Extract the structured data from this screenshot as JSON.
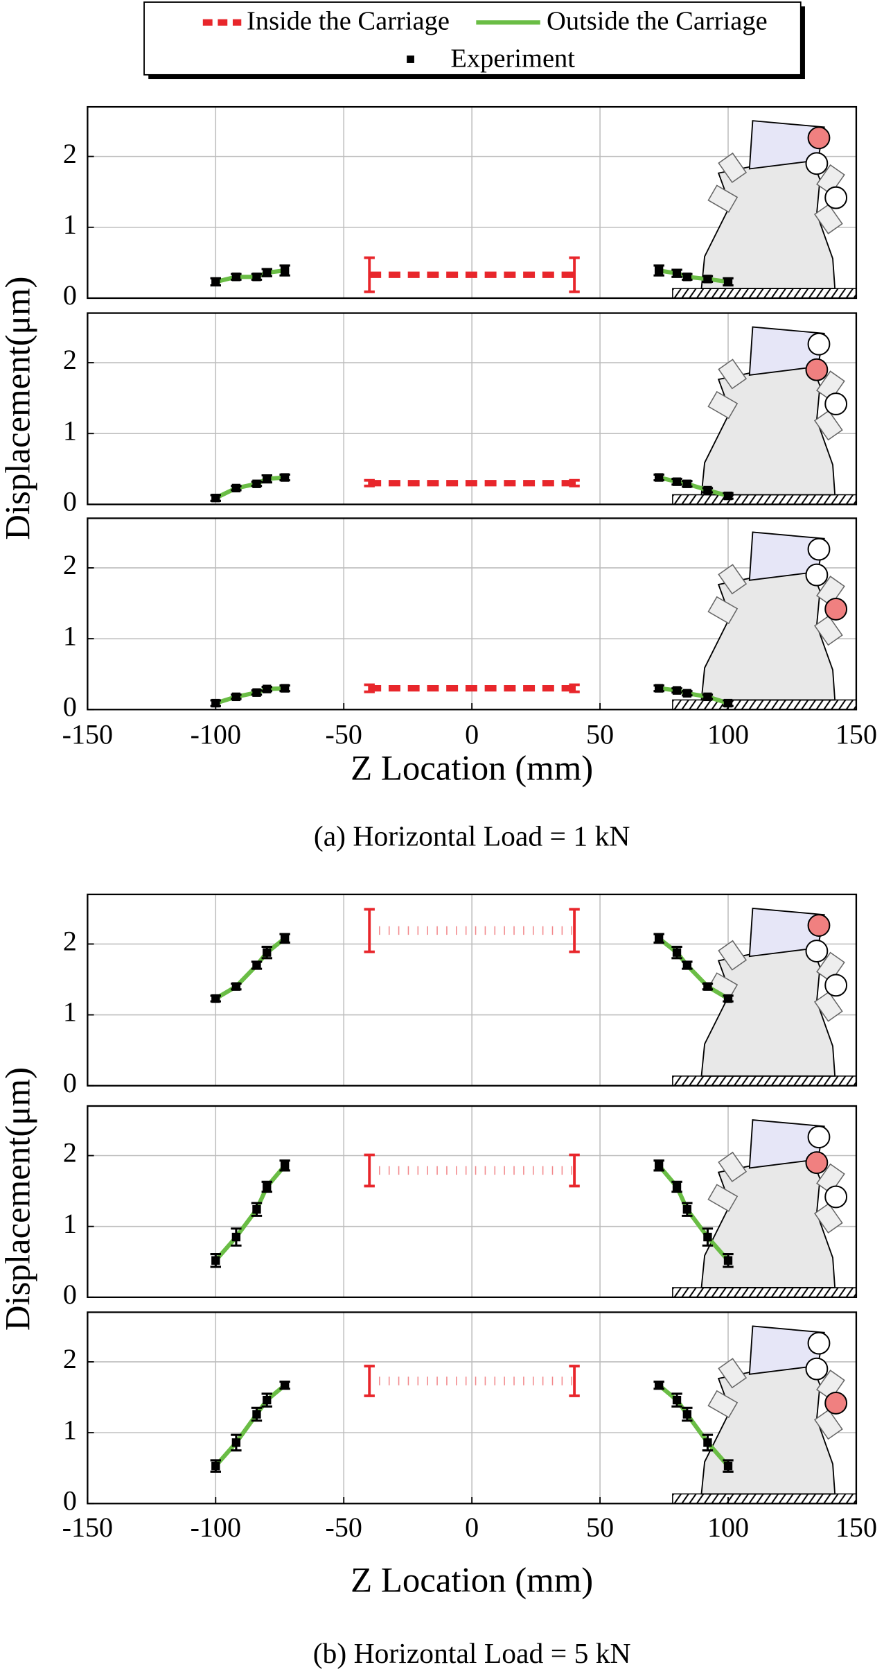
{
  "chart_data": [
    {
      "type": "line",
      "caption": "(a) Horizontal Load = 1 kN",
      "x_label": "Z Location (mm)",
      "y_label": "Displacement(μm)",
      "xlim": [
        -150,
        150
      ],
      "xticks": [
        -150,
        -100,
        -50,
        0,
        50,
        100,
        150
      ],
      "ylim": [
        0,
        2.7
      ],
      "yticks": [
        0,
        1,
        2
      ],
      "grid": true,
      "series": [
        {
          "name": "Inside the Carriage",
          "color": "#e8262b",
          "style": "dashed"
        },
        {
          "name": "Outside the Carriage",
          "color": "#6abd45",
          "style": "solid"
        },
        {
          "name": "Experiment",
          "color": "#000000",
          "style": "marker"
        }
      ],
      "panels": [
        {
          "series": [
            {
              "x": [
                -40,
                40
              ],
              "values": [
                0.33,
                0.33
              ],
              "errors": [
                0.24,
                0.24
              ]
            },
            {
              "x": [
                -100,
                -92,
                -84,
                -80,
                -73,
                null,
                73,
                80,
                84,
                92,
                100
              ],
              "values": [
                0.23,
                0.3,
                0.3,
                0.36,
                0.39,
                null,
                0.39,
                0.35,
                0.3,
                0.27,
                0.23
              ]
            },
            {
              "x": [
                -100,
                -92,
                -84,
                -80,
                -73,
                73,
                80,
                84,
                92,
                100
              ],
              "values": [
                0.23,
                0.3,
                0.3,
                0.36,
                0.39,
                0.39,
                0.35,
                0.3,
                0.27,
                0.23
              ],
              "errors": [
                0.05,
                0.04,
                0.04,
                0.05,
                0.07,
                0.07,
                0.05,
                0.04,
                0.04,
                0.05
              ]
            }
          ]
        },
        {
          "series": [
            {
              "x": [
                -40,
                40
              ],
              "values": [
                0.3,
                0.3
              ],
              "errors": [
                0.04,
                0.04
              ]
            },
            {
              "x": [
                -100,
                -92,
                -84,
                -80,
                -73,
                null,
                73,
                80,
                84,
                92,
                100
              ],
              "values": [
                0.09,
                0.23,
                0.29,
                0.36,
                0.38,
                null,
                0.38,
                0.32,
                0.29,
                0.2,
                0.12
              ]
            },
            {
              "x": [
                -100,
                -92,
                -84,
                -80,
                -73,
                73,
                80,
                84,
                92,
                100
              ],
              "values": [
                0.09,
                0.23,
                0.29,
                0.36,
                0.38,
                0.38,
                0.32,
                0.29,
                0.2,
                0.12
              ],
              "errors": [
                0.04,
                0.03,
                0.03,
                0.05,
                0.04,
                0.04,
                0.04,
                0.04,
                0.03,
                0.04
              ]
            }
          ]
        },
        {
          "series": [
            {
              "x": [
                -40,
                40
              ],
              "values": [
                0.3,
                0.3
              ],
              "errors": [
                0.05,
                0.05
              ]
            },
            {
              "x": [
                -100,
                -92,
                -84,
                -80,
                -73,
                null,
                73,
                80,
                84,
                92,
                100
              ],
              "values": [
                0.09,
                0.18,
                0.24,
                0.29,
                0.3,
                null,
                0.3,
                0.27,
                0.23,
                0.18,
                0.09
              ]
            },
            {
              "x": [
                -100,
                -92,
                -84,
                -80,
                -73,
                73,
                80,
                84,
                92,
                100
              ],
              "values": [
                0.09,
                0.18,
                0.24,
                0.29,
                0.3,
                0.3,
                0.27,
                0.23,
                0.18,
                0.09
              ],
              "errors": [
                0.04,
                0.03,
                0.03,
                0.03,
                0.04,
                0.04,
                0.03,
                0.03,
                0.03,
                0.04
              ]
            }
          ]
        }
      ]
    },
    {
      "type": "line",
      "caption": "(b) Horizontal Load = 5 kN",
      "x_label": "Z Location (mm)",
      "y_label": "Displacement(μm)",
      "xlim": [
        -150,
        150
      ],
      "xticks": [
        -150,
        -100,
        -50,
        0,
        50,
        100,
        150
      ],
      "ylim": [
        0,
        2.7
      ],
      "yticks": [
        0,
        1,
        2
      ],
      "grid": true,
      "series": [
        {
          "color": "#e8262b",
          "style": "dotted"
        },
        {
          "color": "#6abd45",
          "style": "solid"
        },
        {
          "color": "#000000",
          "style": "marker"
        }
      ],
      "panels": [
        {
          "series": [
            {
              "x": [
                -40,
                40
              ],
              "values": [
                2.19,
                2.19
              ],
              "errors": [
                0.3,
                0.3
              ]
            },
            {
              "x": [
                -100,
                -92,
                -84,
                -80,
                -73,
                null,
                73,
                80,
                84,
                92,
                100
              ],
              "values": [
                1.23,
                1.4,
                1.7,
                1.88,
                2.08,
                null,
                2.08,
                1.88,
                1.7,
                1.4,
                1.23
              ]
            },
            {
              "x": [
                -100,
                -92,
                -84,
                -80,
                -73,
                73,
                80,
                84,
                92,
                100
              ],
              "values": [
                1.23,
                1.4,
                1.7,
                1.88,
                2.08,
                2.08,
                1.88,
                1.7,
                1.4,
                1.23
              ],
              "errors": [
                0.04,
                0.04,
                0.05,
                0.08,
                0.06,
                0.06,
                0.08,
                0.05,
                0.04,
                0.04
              ]
            }
          ]
        },
        {
          "series": [
            {
              "x": [
                -40,
                40
              ],
              "values": [
                1.79,
                1.79
              ],
              "errors": [
                0.22,
                0.22
              ]
            },
            {
              "x": [
                -100,
                -92,
                -84,
                -80,
                -73,
                null,
                73,
                80,
                84,
                92,
                100
              ],
              "values": [
                0.52,
                0.85,
                1.24,
                1.56,
                1.86,
                null,
                1.86,
                1.56,
                1.24,
                0.85,
                0.52
              ]
            },
            {
              "x": [
                -100,
                -92,
                -84,
                -80,
                -73,
                73,
                80,
                84,
                92,
                100
              ],
              "values": [
                0.52,
                0.85,
                1.24,
                1.56,
                1.86,
                1.86,
                1.56,
                1.24,
                0.85,
                0.52
              ],
              "errors": [
                0.09,
                0.12,
                0.09,
                0.07,
                0.07,
                0.07,
                0.07,
                0.09,
                0.12,
                0.09
              ]
            }
          ]
        },
        {
          "series": [
            {
              "x": [
                -40,
                40
              ],
              "values": [
                1.73,
                1.73
              ],
              "errors": [
                0.21,
                0.21
              ]
            },
            {
              "x": [
                -100,
                -92,
                -84,
                -80,
                -73,
                null,
                73,
                80,
                84,
                92,
                100
              ],
              "values": [
                0.53,
                0.86,
                1.26,
                1.46,
                1.67,
                null,
                1.67,
                1.46,
                1.26,
                0.86,
                0.53
              ]
            },
            {
              "x": [
                -100,
                -92,
                -84,
                -80,
                -73,
                73,
                80,
                84,
                92,
                100
              ],
              "values": [
                0.53,
                0.86,
                1.26,
                1.46,
                1.67,
                1.67,
                1.46,
                1.26,
                0.86,
                0.53
              ],
              "errors": [
                0.08,
                0.11,
                0.09,
                0.09,
                0.05,
                0.05,
                0.09,
                0.09,
                0.11,
                0.08
              ]
            }
          ]
        }
      ]
    }
  ]
}
